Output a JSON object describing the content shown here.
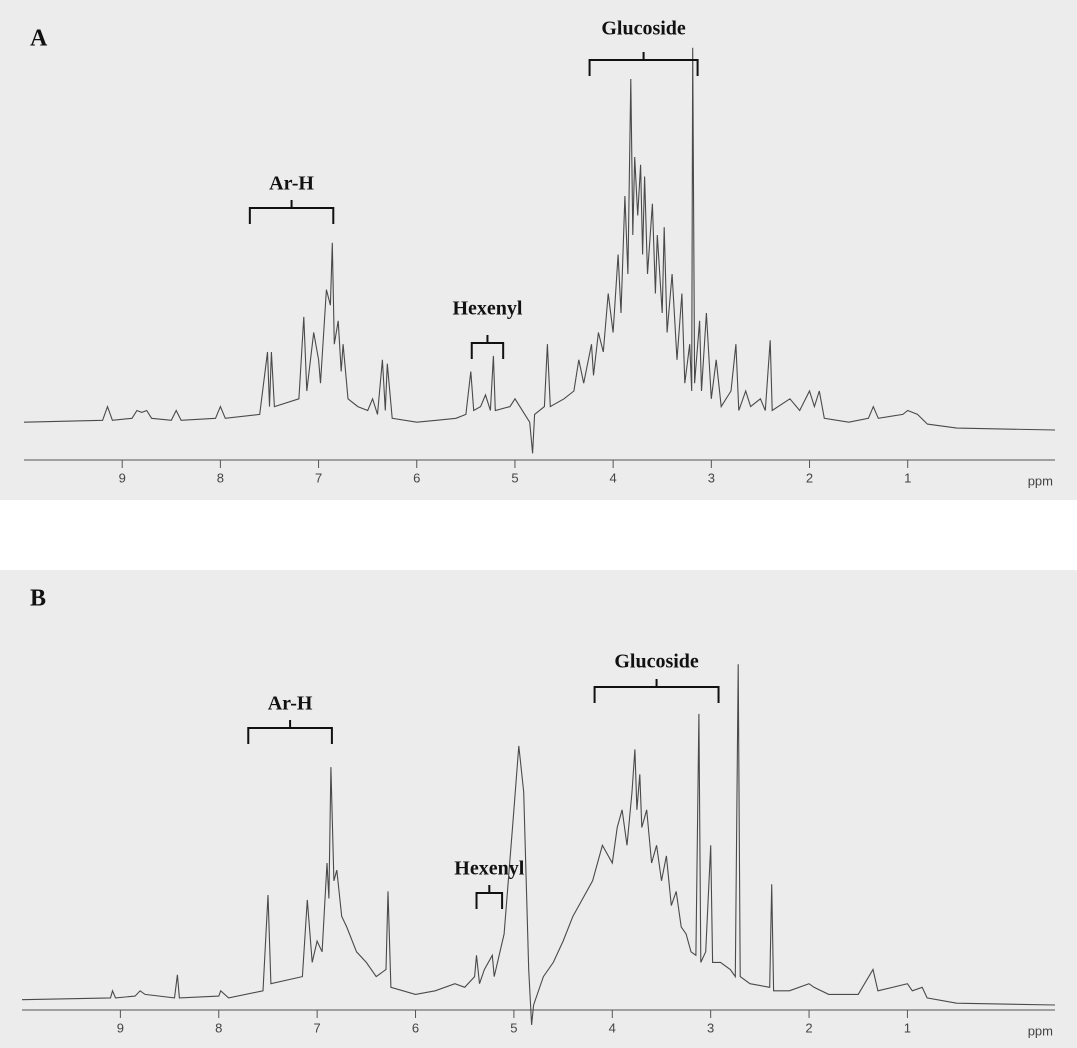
{
  "chart_data": [
    {
      "type": "line",
      "title": "A",
      "x_label": "ppm",
      "color": "#4a4a4a",
      "xlim": [
        10,
        -0.5
      ],
      "xticks": [
        9,
        8,
        7,
        6,
        5,
        4,
        3,
        2,
        1
      ],
      "ylim": [
        0,
        100
      ],
      "annotations": [
        {
          "text": "Ar-H",
          "x": [
            7.7,
            6.85
          ]
        },
        {
          "text": "Hexenyl",
          "x": [
            5.44,
            5.12
          ]
        },
        {
          "text": "Glucoside",
          "x": [
            4.24,
            3.14
          ]
        }
      ],
      "x": [
        10,
        9.2,
        9.15,
        9.1,
        8.9,
        8.85,
        8.8,
        8.75,
        8.7,
        8.5,
        8.45,
        8.4,
        8.05,
        8.0,
        7.95,
        7.6,
        7.52,
        7.5,
        7.48,
        7.45,
        7.2,
        7.15,
        7.12,
        7.05,
        7.0,
        6.98,
        6.92,
        6.88,
        6.86,
        6.84,
        6.8,
        6.77,
        6.75,
        6.7,
        6.6,
        6.5,
        6.45,
        6.4,
        6.35,
        6.32,
        6.3,
        6.25,
        6.0,
        5.8,
        5.6,
        5.5,
        5.45,
        5.42,
        5.35,
        5.3,
        5.25,
        5.22,
        5.2,
        5.05,
        5.0,
        4.9,
        4.85,
        4.82,
        4.8,
        4.7,
        4.67,
        4.64,
        4.5,
        4.4,
        4.35,
        4.3,
        4.22,
        4.2,
        4.15,
        4.1,
        4.05,
        4.0,
        3.95,
        3.92,
        3.88,
        3.85,
        3.82,
        3.8,
        3.78,
        3.75,
        3.72,
        3.7,
        3.68,
        3.65,
        3.6,
        3.57,
        3.55,
        3.5,
        3.48,
        3.45,
        3.4,
        3.35,
        3.3,
        3.27,
        3.22,
        3.2,
        3.19,
        3.17,
        3.12,
        3.1,
        3.05,
        3.0,
        2.95,
        2.9,
        2.8,
        2.75,
        2.72,
        2.65,
        2.6,
        2.5,
        2.45,
        2.4,
        2.38,
        2.2,
        2.1,
        2.0,
        1.95,
        1.9,
        1.85,
        1.6,
        1.4,
        1.35,
        1.3,
        1.05,
        1.0,
        0.9,
        0.8,
        0.5,
        -0.5
      ],
      "values": [
        2,
        2.5,
        6,
        2.5,
        3,
        5,
        4.5,
        5,
        3,
        2.5,
        5,
        2.5,
        3,
        6,
        3,
        4,
        20,
        6,
        20,
        6,
        8,
        29,
        10,
        25,
        18,
        12,
        36,
        32,
        48,
        22,
        28,
        15,
        22,
        8,
        6,
        5,
        8,
        4,
        18,
        5,
        17,
        3,
        2,
        2.5,
        3,
        4,
        15,
        5,
        6,
        9,
        5,
        19,
        5,
        6,
        8,
        4,
        2,
        -6,
        4,
        6,
        22,
        6,
        8,
        10,
        18,
        12,
        22,
        14,
        25,
        20,
        35,
        25,
        45,
        30,
        60,
        40,
        90,
        50,
        70,
        55,
        68,
        45,
        65,
        40,
        58,
        35,
        50,
        30,
        52,
        25,
        40,
        18,
        35,
        12,
        22,
        10,
        98,
        12,
        28,
        10,
        30,
        8,
        18,
        6,
        10,
        22,
        5,
        10,
        6,
        8,
        5,
        23,
        5,
        8,
        5,
        10,
        6,
        10,
        3,
        2,
        3,
        6,
        3,
        4,
        5,
        4,
        1.5,
        0.5,
        0
      ]
    },
    {
      "type": "line",
      "title": "B",
      "x_label": "ppm",
      "color": "#4a4a4a",
      "xlim": [
        10,
        -0.5
      ],
      "xticks": [
        9,
        8,
        7,
        6,
        5,
        4,
        3,
        2,
        1
      ],
      "ylim": [
        0,
        100
      ],
      "annotations": [
        {
          "text": "Ar-H",
          "x": [
            7.7,
            6.85
          ]
        },
        {
          "text": "Hexenyl",
          "x": [
            5.38,
            5.12
          ]
        },
        {
          "text": "Glucoside",
          "x": [
            4.18,
            2.92
          ]
        }
      ],
      "x": [
        10,
        9.1,
        9.08,
        9.05,
        8.85,
        8.8,
        8.75,
        8.45,
        8.42,
        8.4,
        8.0,
        7.98,
        7.9,
        7.55,
        7.5,
        7.47,
        7.15,
        7.1,
        7.05,
        7.0,
        6.95,
        6.9,
        6.88,
        6.86,
        6.83,
        6.8,
        6.75,
        6.7,
        6.6,
        6.5,
        6.4,
        6.3,
        6.28,
        6.25,
        6.0,
        5.8,
        5.6,
        5.5,
        5.4,
        5.38,
        5.35,
        5.3,
        5.22,
        5.2,
        5.1,
        5.0,
        4.95,
        4.9,
        4.85,
        4.82,
        4.8,
        4.7,
        4.6,
        4.5,
        4.4,
        4.3,
        4.2,
        4.1,
        4.0,
        3.95,
        3.9,
        3.85,
        3.8,
        3.77,
        3.75,
        3.72,
        3.7,
        3.65,
        3.6,
        3.55,
        3.5,
        3.45,
        3.4,
        3.35,
        3.3,
        3.25,
        3.2,
        3.15,
        3.12,
        3.1,
        3.05,
        3.0,
        2.98,
        2.9,
        2.8,
        2.75,
        2.72,
        2.7,
        2.6,
        2.4,
        2.38,
        2.36,
        2.2,
        2.0,
        1.95,
        1.8,
        1.5,
        1.35,
        1.3,
        1.0,
        0.95,
        0.85,
        0.8,
        0.5,
        -0.5
      ],
      "values": [
        1.5,
        2,
        4,
        2,
        2.5,
        4,
        3,
        2,
        8.5,
        2,
        2.5,
        4,
        2,
        4,
        31,
        6,
        8,
        29.6,
        12,
        18,
        15,
        40,
        30,
        67,
        35,
        38,
        25,
        22,
        15,
        12,
        8,
        10,
        32,
        5,
        3,
        4,
        6,
        5,
        8,
        14,
        6,
        10,
        14,
        8,
        20,
        55,
        73,
        60,
        10,
        -5.6,
        0,
        8,
        12,
        18,
        25,
        30,
        35,
        45,
        40,
        50,
        55,
        45,
        60,
        72,
        55,
        65,
        50,
        55,
        40,
        45,
        35,
        42,
        28,
        32,
        22,
        20,
        15,
        14,
        82,
        12,
        15,
        45,
        12,
        12,
        10,
        8,
        96,
        8,
        6,
        5,
        34,
        4,
        4,
        6,
        5,
        3,
        3,
        10,
        4,
        6,
        4,
        5,
        2,
        0.5,
        0
      ]
    }
  ]
}
